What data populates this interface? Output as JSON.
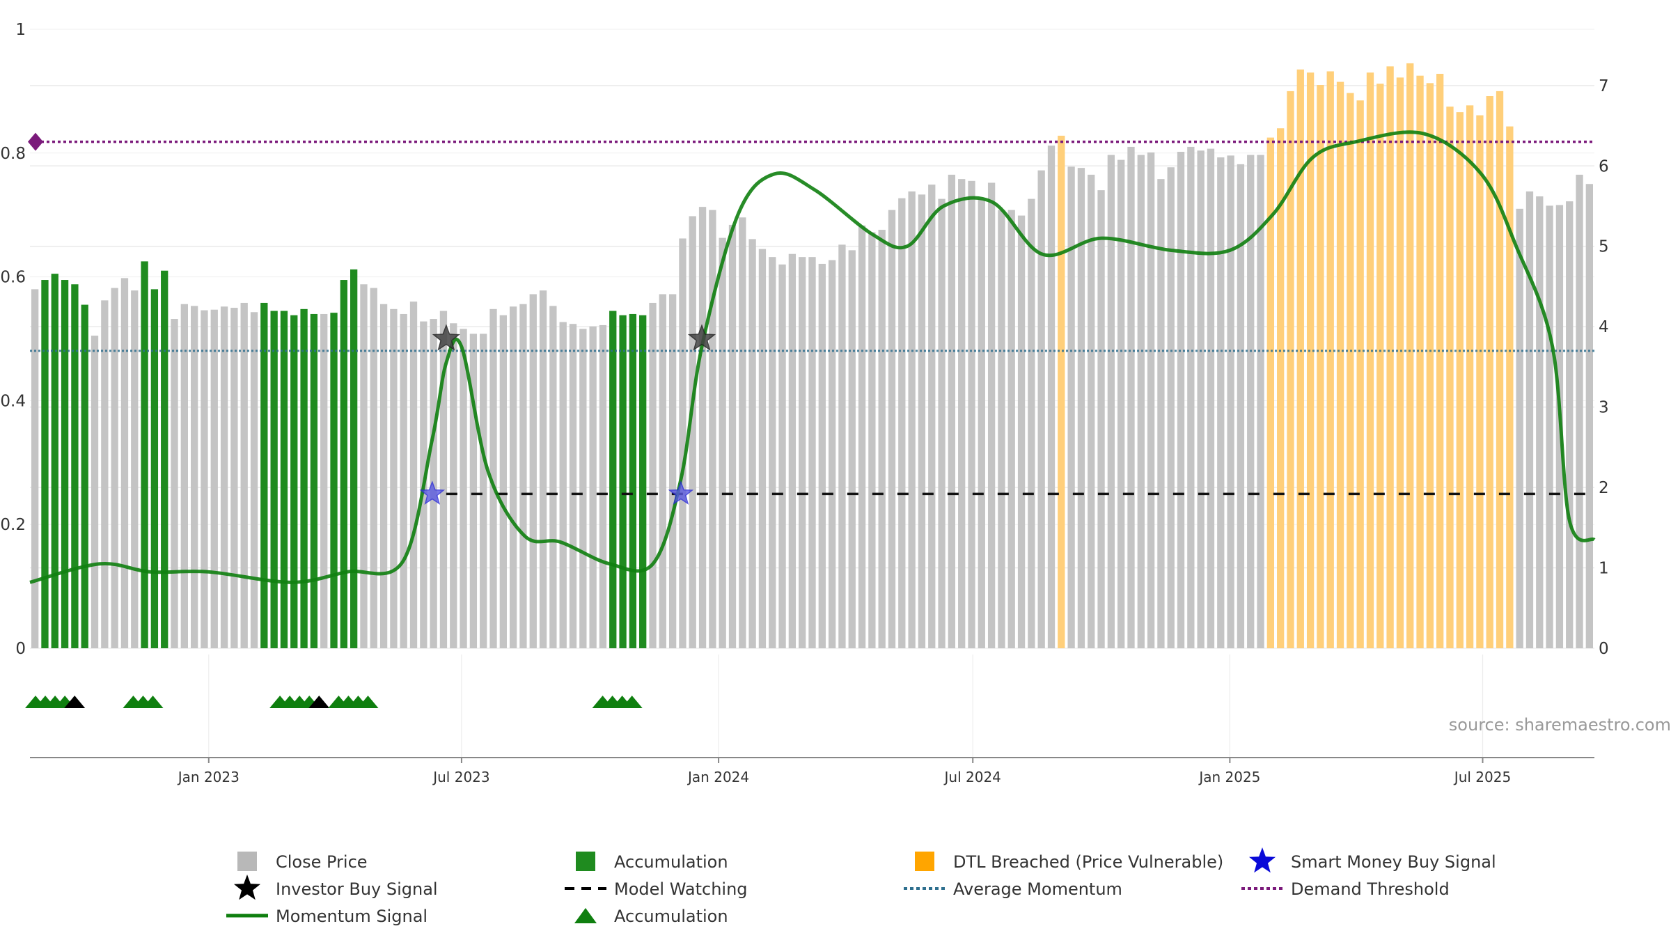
{
  "chart_data": {
    "type": "bar",
    "subtype": "price bars with momentum overlay",
    "x_range": [
      "2022-08-26",
      "2025-09-19"
    ],
    "date_ticks": [
      "2023-01-01",
      "2023-07-01",
      "2024-01-01",
      "2024-07-01",
      "2025-01-01",
      "2025-07-01"
    ],
    "date_tick_labels": [
      "Jan 2023",
      "Jul 2023",
      "Jan 2024",
      "Jul 2024",
      "Jan 2025",
      "Jul 2025"
    ],
    "left_axis": {
      "range": [
        0,
        1
      ],
      "ticks": [
        0,
        0.2,
        0.4,
        0.6,
        0.8,
        1
      ],
      "tick_labels": [
        "0",
        "0.2",
        "0.4",
        "0.6",
        "0.8",
        "1"
      ]
    },
    "right_axis": {
      "range": [
        0,
        7.7
      ],
      "ticks": [
        0,
        1,
        2,
        3,
        4,
        5,
        6,
        7
      ],
      "tick_labels": [
        "0",
        "1",
        "2",
        "3",
        "4",
        "5",
        "6",
        "7"
      ]
    },
    "grid": true,
    "legend_position": "bottom",
    "bar_colors": {
      "gray": "#c4c4c4",
      "green": "#1f8b1f",
      "orange": "#ffcf7a"
    },
    "close_price_weekly": [
      0.58,
      0.595,
      0.605,
      0.595,
      0.588,
      0.555,
      0.505,
      0.562,
      0.582,
      0.598,
      0.578,
      0.625,
      0.58,
      0.61,
      0.532,
      0.556,
      0.553,
      0.546,
      0.547,
      0.552,
      0.55,
      0.558,
      0.543,
      0.558,
      0.545,
      0.545,
      0.538,
      0.548,
      0.54,
      0.54,
      0.542,
      0.595,
      0.612,
      0.588,
      0.582,
      0.556,
      0.548,
      0.54,
      0.56,
      0.528,
      0.532,
      0.545,
      0.525,
      0.516,
      0.508,
      0.508,
      0.548,
      0.538,
      0.552,
      0.556,
      0.572,
      0.578,
      0.553,
      0.527,
      0.524,
      0.516,
      0.52,
      0.522,
      0.545,
      0.538,
      0.54,
      0.538,
      0.558,
      0.572,
      0.572,
      0.662,
      0.698,
      0.713,
      0.708,
      0.663,
      0.684,
      0.696,
      0.661,
      0.645,
      0.632,
      0.62,
      0.637,
      0.632,
      0.632,
      0.621,
      0.627,
      0.652,
      0.643,
      0.683,
      0.672,
      0.676,
      0.708,
      0.727,
      0.738,
      0.733,
      0.749,
      0.726,
      0.765,
      0.758,
      0.755,
      0.725,
      0.752,
      0.708,
      0.708,
      0.699,
      0.726,
      0.772,
      0.812,
      0.828,
      0.778,
      0.776,
      0.765,
      0.74,
      0.797,
      0.789,
      0.81,
      0.797,
      0.801,
      0.758,
      0.777,
      0.802,
      0.81,
      0.804,
      0.807,
      0.793,
      0.796,
      0.782,
      0.797,
      0.797,
      0.825,
      0.84,
      0.9,
      0.935,
      0.93,
      0.91,
      0.932,
      0.915,
      0.897,
      0.885,
      0.93,
      0.912,
      0.94,
      0.922,
      0.945,
      0.925,
      0.913,
      0.928,
      0.875,
      0.866,
      0.877,
      0.861,
      0.892,
      0.9,
      0.843,
      0.71,
      0.738,
      0.73,
      0.715,
      0.716,
      0.722,
      0.765,
      0.75
    ],
    "accumulation_week_ranges": [
      [
        1,
        5
      ],
      [
        11,
        13
      ],
      [
        23,
        28
      ],
      [
        30,
        32
      ],
      [
        58,
        61
      ]
    ],
    "dtl_breached_week_ranges": [
      [
        103,
        103
      ],
      [
        124,
        148
      ]
    ],
    "momentum_signal": {
      "x": [
        "2022-08-26",
        "2022-10-15",
        "2022-11-20",
        "2023-01-01",
        "2023-03-01",
        "2023-04-10",
        "2023-05-20",
        "2023-06-10",
        "2023-06-20",
        "2023-07-01",
        "2023-07-20",
        "2023-08-15",
        "2023-09-10",
        "2023-10-15",
        "2023-11-15",
        "2023-12-05",
        "2023-12-20",
        "2024-01-15",
        "2024-02-10",
        "2024-03-10",
        "2024-04-20",
        "2024-05-15",
        "2024-06-10",
        "2024-07-15",
        "2024-08-20",
        "2024-10-01",
        "2024-11-20",
        "2025-01-01",
        "2025-02-01",
        "2025-03-01",
        "2025-04-01",
        "2025-05-20",
        "2025-06-30",
        "2025-07-25",
        "2025-08-20",
        "2025-09-01",
        "2025-09-19"
      ],
      "y": [
        0.82,
        1.05,
        0.95,
        0.95,
        0.82,
        0.95,
        1.08,
        2.6,
        3.55,
        3.75,
        2.2,
        1.4,
        1.32,
        1.05,
        1.05,
        2.1,
        3.75,
        5.4,
        5.9,
        5.7,
        5.15,
        5.0,
        5.5,
        5.55,
        4.9,
        5.1,
        4.95,
        4.95,
        5.4,
        6.1,
        6.3,
        6.4,
        5.9,
        5.0,
        3.75,
        1.6,
        1.35
      ]
    },
    "average_momentum": 3.7,
    "model_watching": {
      "value": 1.92,
      "from": "2023-06-20"
    },
    "demand_threshold": 6.3,
    "investor_buy_signals": [
      {
        "date": "2023-06-20",
        "y": 3.85
      },
      {
        "date": "2023-12-20",
        "y": 3.85
      }
    ],
    "smart_money_buy_signals": [
      {
        "date": "2023-06-10",
        "y": 1.92
      },
      {
        "date": "2023-12-05",
        "y": 1.92
      }
    ],
    "accumulation_markers": [
      {
        "date": "2022-08-30",
        "color": "green"
      },
      {
        "date": "2022-09-06",
        "color": "green"
      },
      {
        "date": "2022-09-13",
        "color": "green"
      },
      {
        "date": "2022-09-20",
        "color": "green"
      },
      {
        "date": "2022-09-27",
        "color": "black"
      },
      {
        "date": "2022-11-08",
        "color": "green"
      },
      {
        "date": "2022-11-15",
        "color": "green"
      },
      {
        "date": "2022-11-22",
        "color": "green"
      },
      {
        "date": "2023-02-21",
        "color": "green"
      },
      {
        "date": "2023-02-28",
        "color": "green"
      },
      {
        "date": "2023-03-07",
        "color": "green"
      },
      {
        "date": "2023-03-14",
        "color": "green"
      },
      {
        "date": "2023-03-21",
        "color": "black"
      },
      {
        "date": "2023-04-04",
        "color": "green"
      },
      {
        "date": "2023-04-11",
        "color": "green"
      },
      {
        "date": "2023-04-18",
        "color": "green"
      },
      {
        "date": "2023-04-25",
        "color": "green"
      },
      {
        "date": "2023-10-10",
        "color": "green"
      },
      {
        "date": "2023-10-17",
        "color": "green"
      },
      {
        "date": "2023-10-24",
        "color": "green"
      },
      {
        "date": "2023-10-31",
        "color": "green"
      }
    ],
    "source_text": "source: sharemaestro.com",
    "legend": [
      {
        "label": "Close Price",
        "symbol": "square",
        "color": "#b8b8b8"
      },
      {
        "label": "Accumulation",
        "symbol": "square",
        "color": "#1f8b1f"
      },
      {
        "label": "DTL Breached (Price Vulnerable)",
        "symbol": "square",
        "color": "#ffa500"
      },
      {
        "label": "Smart Money Buy Signal",
        "symbol": "star",
        "color": "#0a0ad8"
      },
      {
        "label": "Investor Buy Signal",
        "symbol": "star",
        "color": "#000000"
      },
      {
        "label": "Model Watching",
        "symbol": "dash",
        "color": "#000000"
      },
      {
        "label": "Average Momentum",
        "symbol": "dot",
        "color": "#2e6f8e"
      },
      {
        "label": "Demand Threshold",
        "symbol": "dot",
        "color": "#7b1a7b"
      },
      {
        "label": "Momentum Signal",
        "symbol": "line",
        "color": "#0f7f0f"
      },
      {
        "label": "Accumulation",
        "symbol": "triangle",
        "color": "#0f7f0f"
      }
    ]
  }
}
